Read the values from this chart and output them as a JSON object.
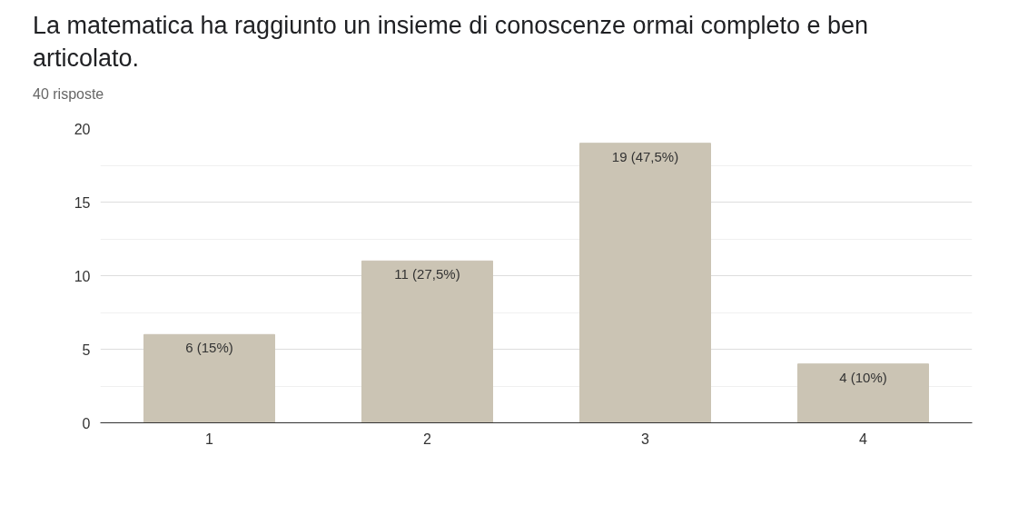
{
  "chart_data": {
    "type": "bar",
    "title": "La matematica ha raggiunto un insieme di conoscenze ormai completo e ben articolato.",
    "subtitle": "40 risposte",
    "categories": [
      "1",
      "2",
      "3",
      "4"
    ],
    "values": [
      6,
      11,
      19,
      4
    ],
    "value_labels": [
      "6 (15%)",
      "11 (27,5%)",
      "19 (47,5%)",
      "4 (10%)"
    ],
    "color": "#cbc4b4",
    "ylim": [
      0,
      20
    ],
    "yticks": [
      0,
      5,
      10,
      15,
      20
    ],
    "grid": "y"
  }
}
